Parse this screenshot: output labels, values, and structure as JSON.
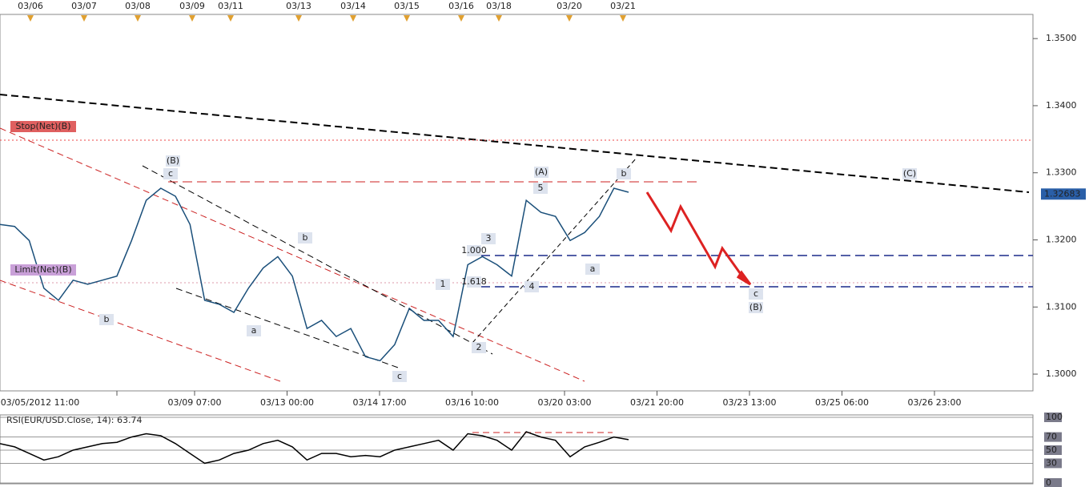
{
  "chart_data": [
    {
      "type": "line",
      "date_markers": [
        "03/06",
        "03/07",
        "03/08",
        "03/09",
        "03/11",
        "03/13",
        "03/14",
        "03/15",
        "03/16",
        "03/18",
        "03/20",
        "03/21"
      ],
      "x_labels": [
        "03/05/2012 11:00",
        "03/09 07:00",
        "03/13 00:00",
        "03/14 17:00",
        "03/16 10:00",
        "03/20 03:00",
        "03/21 20:00",
        "03/23 13:00",
        "03/25 06:00",
        "03/26 23:00"
      ],
      "ylim": [
        1.2975,
        1.3536
      ],
      "yticks": [
        {
          "value": 1.3,
          "label": "1.3000"
        },
        {
          "value": 1.31,
          "label": "1.3100"
        },
        {
          "value": 1.32,
          "label": "1.3200"
        },
        {
          "value": 1.33,
          "label": "1.3300"
        },
        {
          "value": 1.34,
          "label": "1.3400"
        },
        {
          "value": 1.35,
          "label": "1.3500"
        }
      ],
      "last_price": {
        "value": 1.32683,
        "label": "1.32683"
      },
      "series": [
        {
          "name": "EUR/USD",
          "color": "#1a4f7a",
          "values": [
            1.3223,
            1.322,
            1.3199,
            1.3128,
            1.311,
            1.314,
            1.3134,
            1.314,
            1.3146,
            1.3199,
            1.3259,
            1.3277,
            1.3265,
            1.3223,
            1.311,
            1.3104,
            1.3092,
            1.3128,
            1.3158,
            1.3175,
            1.3146,
            1.3068,
            1.308,
            1.3056,
            1.3068,
            1.3026,
            1.302,
            1.3044,
            1.3098,
            1.308,
            1.308,
            1.3056,
            1.3163,
            1.3175,
            1.3163,
            1.3146,
            1.3259,
            1.3241,
            1.3235,
            1.3199,
            1.3211,
            1.3235,
            1.3277,
            1.3271
          ]
        }
      ],
      "annotations": [
        "(B)",
        "c",
        "b",
        "a",
        "b",
        "a",
        "c",
        "1",
        "2",
        "3",
        "4",
        "5",
        "(A)",
        "a",
        "b",
        "c",
        "(B)",
        "(C)",
        "1.000",
        "1.618",
        "Stop(Net)(B)",
        "Limit(Net)(B)"
      ]
    },
    {
      "type": "line",
      "title": "RSI(EUR/USD.Close, 14): 63.74",
      "ylim": [
        0,
        100
      ],
      "yticks": [
        0,
        30,
        50,
        70,
        100
      ],
      "series": [
        {
          "name": "RSI",
          "color": "#000000",
          "values": [
            60,
            55,
            45,
            35,
            40,
            50,
            55,
            60,
            62,
            70,
            75,
            72,
            60,
            45,
            30,
            35,
            45,
            50,
            60,
            65,
            55,
            35,
            45,
            45,
            40,
            42,
            40,
            50,
            55,
            60,
            65,
            50,
            75,
            72,
            65,
            50,
            78,
            70,
            65,
            40,
            55,
            62,
            70,
            66
          ]
        }
      ]
    }
  ]
}
